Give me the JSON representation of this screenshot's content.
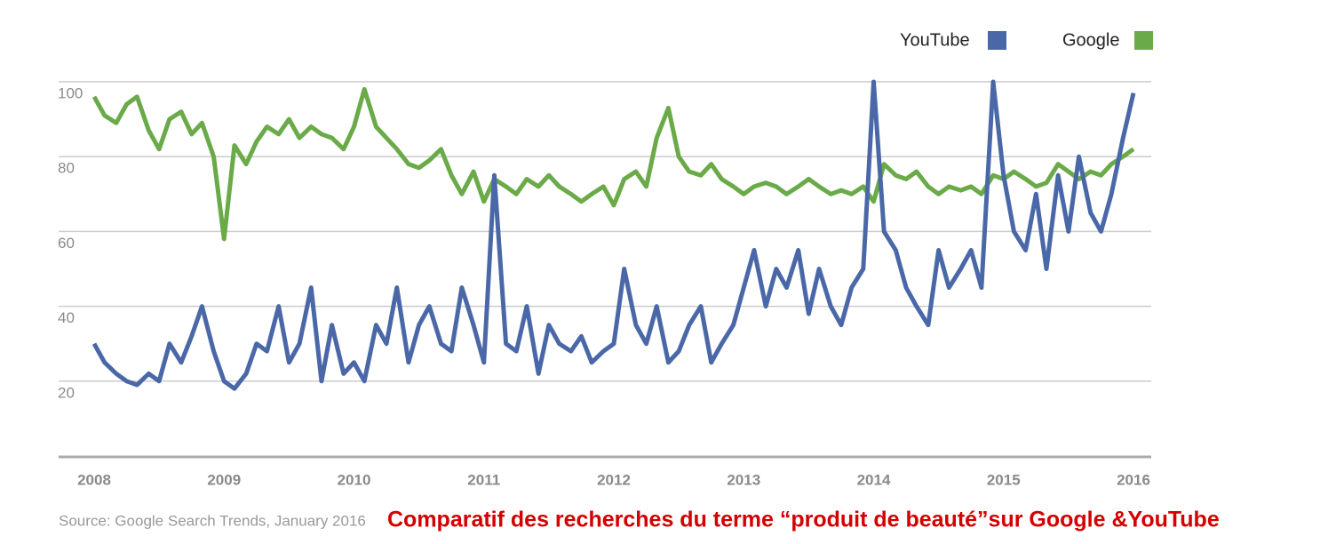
{
  "chart_data": {
    "type": "line",
    "title": "Comparatif des recherches du terme “produit de beauté”sur Google  &YouTube",
    "source": "Source: Google Search Trends, January 2016",
    "x": [
      2008,
      2008.08,
      2008.17,
      2008.25,
      2008.33,
      2008.42,
      2008.5,
      2008.58,
      2008.67,
      2008.75,
      2008.83,
      2008.92,
      2009,
      2009.08,
      2009.17,
      2009.25,
      2009.33,
      2009.42,
      2009.5,
      2009.58,
      2009.67,
      2009.75,
      2009.83,
      2009.92,
      2010,
      2010.08,
      2010.17,
      2010.25,
      2010.33,
      2010.42,
      2010.5,
      2010.58,
      2010.67,
      2010.75,
      2010.83,
      2010.92,
      2011,
      2011.08,
      2011.17,
      2011.25,
      2011.33,
      2011.42,
      2011.5,
      2011.58,
      2011.67,
      2011.75,
      2011.83,
      2011.92,
      2012,
      2012.08,
      2012.17,
      2012.25,
      2012.33,
      2012.42,
      2012.5,
      2012.58,
      2012.67,
      2012.75,
      2012.83,
      2012.92,
      2013,
      2013.08,
      2013.17,
      2013.25,
      2013.33,
      2013.42,
      2013.5,
      2013.58,
      2013.67,
      2013.75,
      2013.83,
      2013.92,
      2014,
      2014.08,
      2014.17,
      2014.25,
      2014.33,
      2014.42,
      2014.5,
      2014.58,
      2014.67,
      2014.75,
      2014.83,
      2014.92,
      2015,
      2015.08,
      2015.17,
      2015.25,
      2015.33,
      2015.42,
      2015.5,
      2015.58,
      2015.67,
      2015.75,
      2015.83,
      2015.92,
      2016
    ],
    "series": [
      {
        "name": "YouTube",
        "color": "#4a68a8",
        "values": [
          30,
          25,
          22,
          20,
          19,
          22,
          20,
          30,
          25,
          32,
          40,
          28,
          20,
          18,
          22,
          30,
          28,
          40,
          25,
          30,
          45,
          20,
          35,
          22,
          25,
          20,
          35,
          30,
          45,
          25,
          35,
          40,
          30,
          28,
          45,
          35,
          25,
          75,
          30,
          28,
          40,
          22,
          35,
          30,
          28,
          32,
          25,
          28,
          30,
          50,
          35,
          30,
          40,
          25,
          28,
          35,
          40,
          25,
          30,
          35,
          45,
          55,
          40,
          50,
          45,
          55,
          38,
          50,
          40,
          35,
          45,
          50,
          100,
          60,
          55,
          45,
          40,
          35,
          55,
          45,
          50,
          55,
          45,
          100,
          75,
          60,
          55,
          70,
          50,
          75,
          60,
          80,
          65,
          60,
          70,
          85,
          97
        ]
      },
      {
        "name": "Google",
        "color": "#6aaa48",
        "values": [
          96,
          91,
          89,
          94,
          96,
          87,
          82,
          90,
          92,
          86,
          89,
          80,
          58,
          83,
          78,
          84,
          88,
          86,
          90,
          85,
          88,
          86,
          85,
          82,
          88,
          98,
          88,
          85,
          82,
          78,
          77,
          79,
          82,
          75,
          70,
          76,
          68,
          74,
          72,
          70,
          74,
          72,
          75,
          72,
          70,
          68,
          70,
          72,
          67,
          74,
          76,
          72,
          85,
          93,
          80,
          76,
          75,
          78,
          74,
          72,
          70,
          72,
          73,
          72,
          70,
          72,
          74,
          72,
          70,
          71,
          70,
          72,
          68,
          78,
          75,
          74,
          76,
          72,
          70,
          72,
          71,
          72,
          70,
          75,
          74,
          76,
          74,
          72,
          73,
          78,
          76,
          74,
          76,
          75,
          78,
          80,
          82
        ]
      }
    ],
    "xlim": [
      2008,
      2016
    ],
    "xticks": [
      2008,
      2009,
      2010,
      2011,
      2012,
      2013,
      2014,
      2015,
      2016
    ],
    "ylim": [
      0,
      100
    ],
    "yticks": [
      20,
      40,
      60,
      80,
      100
    ],
    "grid": true,
    "legend": "top-right"
  }
}
